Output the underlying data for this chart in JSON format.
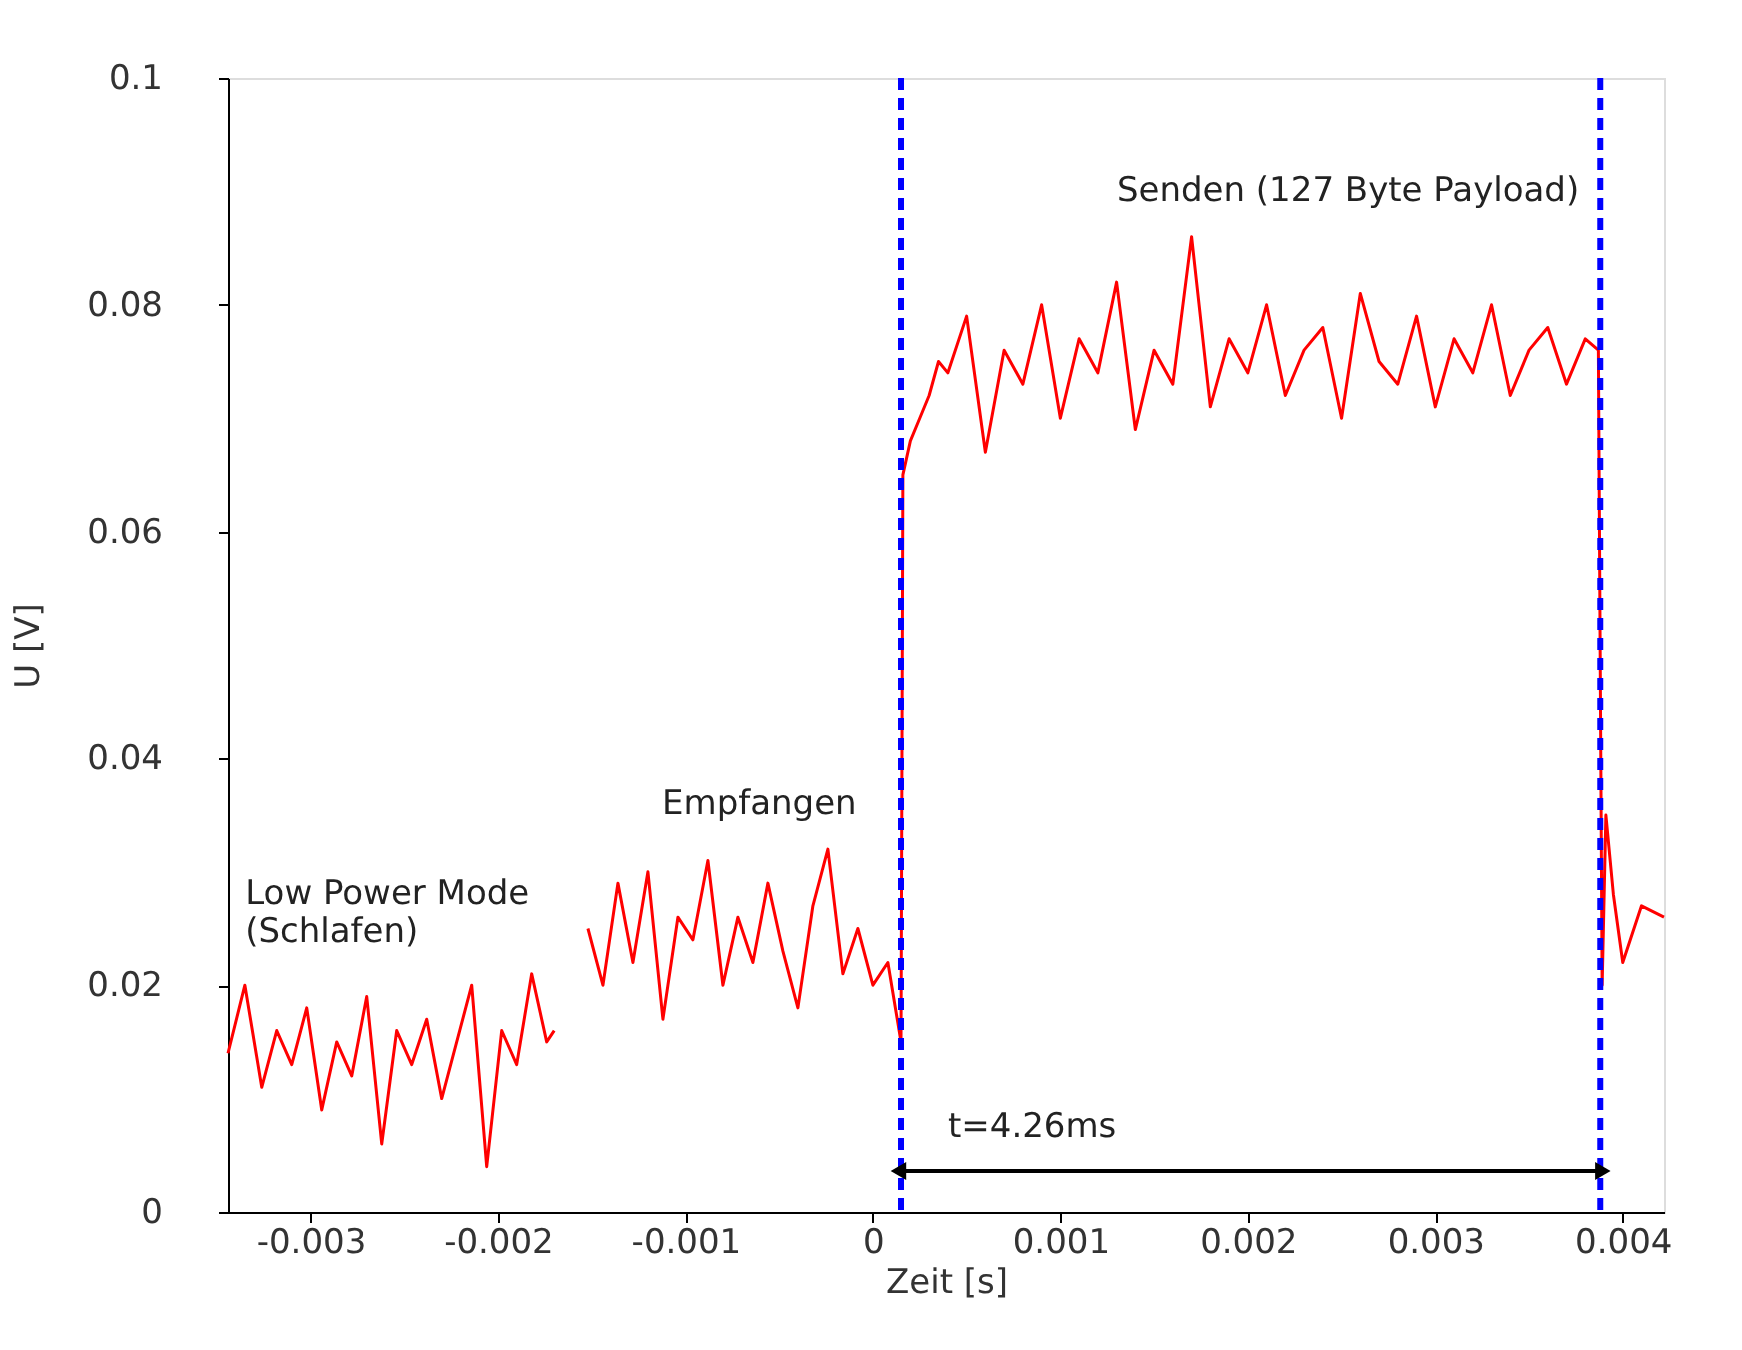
{
  "chart_data": {
    "type": "line",
    "xlabel": "Zeit [s]",
    "ylabel": "U [V]",
    "xlim": [
      -0.00344,
      0.00422
    ],
    "ylim": [
      0,
      0.1
    ],
    "xticks": [
      -0.003,
      -0.002,
      -0.001,
      0,
      0.001,
      0.002,
      0.003,
      0.004
    ],
    "yticks": [
      0,
      0.02,
      0.04,
      0.06,
      0.08,
      0.1
    ],
    "grid": false,
    "marker": "none",
    "line_style": "solid",
    "series": [
      {
        "color": "#ff0000",
        "x": [
          -0.00344,
          -0.00335,
          -0.00326,
          -0.00318,
          -0.0031,
          -0.00302,
          -0.00294,
          -0.00286,
          -0.00278,
          -0.0027,
          -0.00262,
          -0.00254,
          -0.00246,
          -0.00238,
          -0.0023,
          -0.00222,
          -0.00214,
          -0.00206,
          -0.00198,
          -0.0019,
          -0.00182,
          -0.00174,
          -0.0017,
          -0.0016,
          -0.00152,
          -0.00144,
          -0.00136,
          -0.00128,
          -0.0012,
          -0.00112,
          -0.00104,
          -0.00096,
          -0.00088,
          -0.0008,
          -0.00072,
          -0.00064,
          -0.00056,
          -0.00048,
          -0.0004,
          -0.00032,
          -0.00024,
          -0.00016,
          -8e-05,
          0,
          8e-05,
          0.00014,
          0.00015,
          0.00016,
          0.0002,
          0.00025,
          0.0003,
          0.00035,
          0.0004,
          0.0005,
          0.0006,
          0.0007,
          0.0008,
          0.0009,
          0.001,
          0.0011,
          0.0012,
          0.0013,
          0.0014,
          0.0015,
          0.0016,
          0.0017,
          0.0018,
          0.0019,
          0.002,
          0.0021,
          0.0022,
          0.0023,
          0.0024,
          0.0025,
          0.0026,
          0.0027,
          0.0028,
          0.0029,
          0.003,
          0.0031,
          0.0032,
          0.0033,
          0.0034,
          0.0035,
          0.0036,
          0.0037,
          0.0038,
          0.00387,
          0.00389,
          0.00391,
          0.00395,
          0.004,
          0.0041,
          0.00422
        ],
        "values": [
          0.014,
          0.02,
          0.011,
          0.016,
          0.013,
          0.018,
          0.009,
          0.015,
          0.012,
          0.019,
          0.006,
          0.016,
          0.013,
          0.017,
          0.01,
          0.015,
          0.02,
          0.004,
          0.016,
          0.013,
          0.021,
          0.015,
          0.016,
          null,
          0.025,
          0.02,
          0.029,
          0.022,
          0.03,
          0.017,
          0.026,
          0.024,
          0.031,
          0.02,
          0.026,
          0.022,
          0.029,
          0.023,
          0.018,
          0.027,
          0.032,
          0.021,
          0.025,
          0.02,
          0.022,
          0.016,
          0.015,
          0.065,
          0.068,
          0.07,
          0.072,
          0.075,
          0.074,
          0.079,
          0.067,
          0.076,
          0.073,
          0.08,
          0.07,
          0.077,
          0.074,
          0.082,
          0.069,
          0.076,
          0.073,
          0.086,
          0.071,
          0.077,
          0.074,
          0.08,
          0.072,
          0.076,
          0.078,
          0.07,
          0.081,
          0.075,
          0.073,
          0.079,
          0.071,
          0.077,
          0.074,
          0.08,
          0.072,
          0.076,
          0.078,
          0.073,
          0.077,
          0.076,
          0.02,
          0.035,
          0.028,
          0.022,
          0.027,
          0.026
        ]
      }
    ],
    "ref_lines": [
      {
        "axis": "x",
        "value": 0.00015,
        "color": "#0000ff",
        "line_style": "dashed"
      },
      {
        "axis": "x",
        "value": 0.00388,
        "color": "#0000ff",
        "line_style": "dashed"
      }
    ],
    "annotations": [
      "Senden (127 Byte Payload)",
      "Empfangen",
      "Low Power Mode\n(Schlafen)",
      "t=4.26ms"
    ]
  }
}
